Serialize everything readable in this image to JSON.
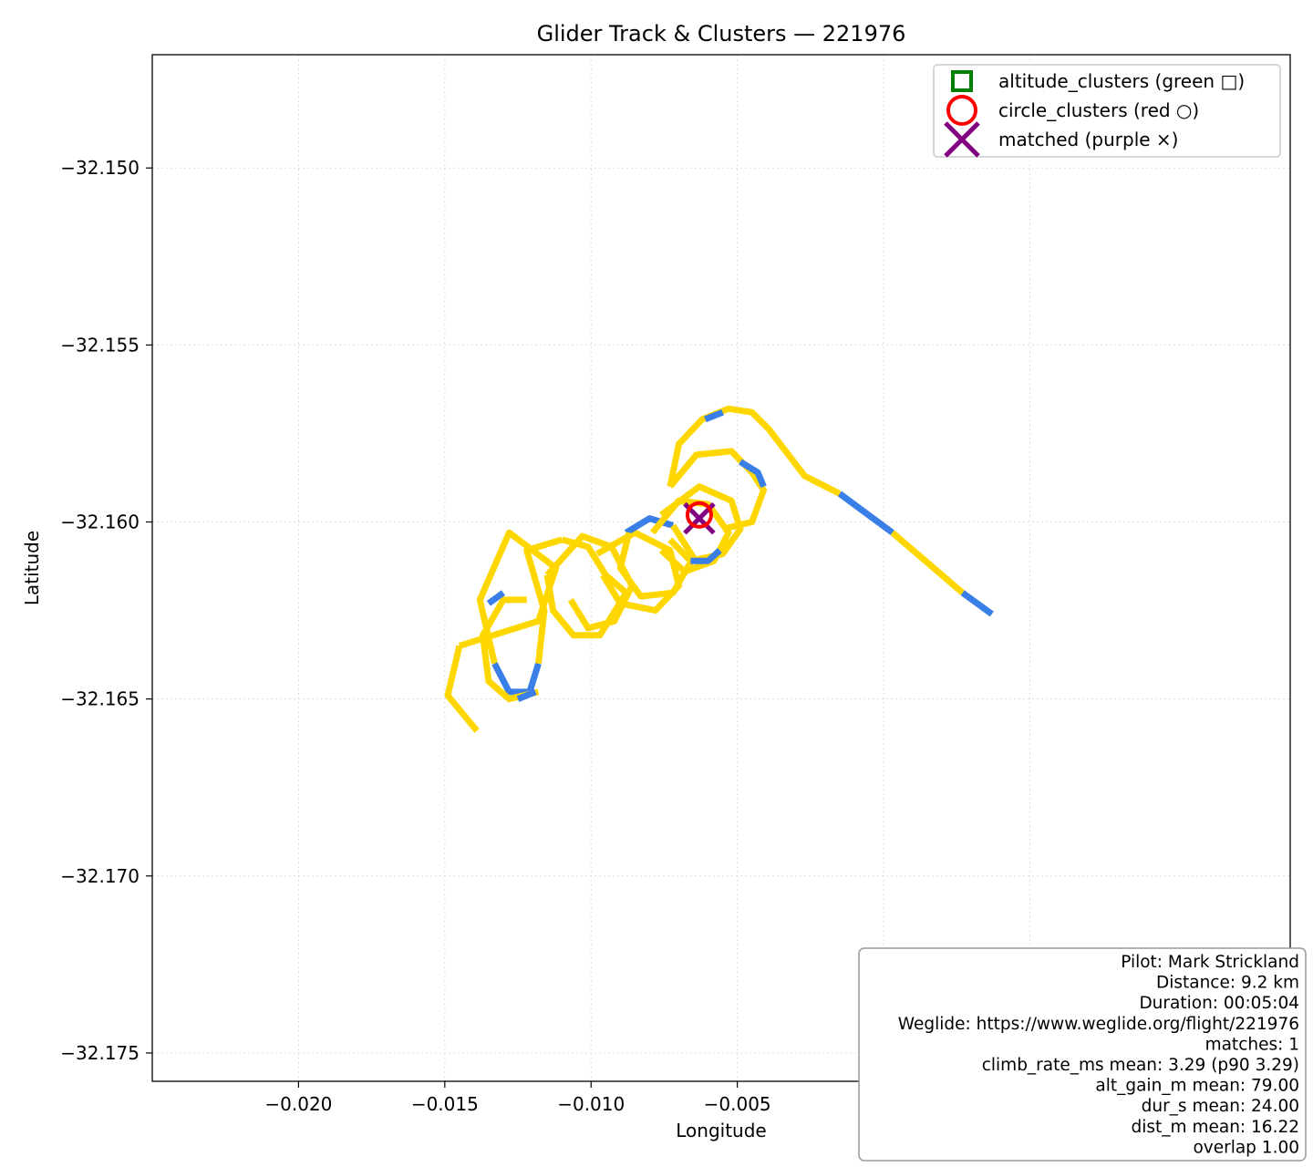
{
  "chart_data": {
    "type": "line",
    "title": "Glider Track & Clusters — 221976",
    "xlabel": "Longitude",
    "ylabel": "Latitude",
    "xlim": [
      -0.025,
      0.0139
    ],
    "ylim": [
      -32.1758,
      -32.1468
    ],
    "x_ticks": [
      -0.02,
      -0.015,
      -0.01,
      -0.005,
      0.0,
      0.005
    ],
    "x_tick_labels": [
      "−0.020",
      "−0.015",
      "−0.010",
      "−0.005",
      "0.000",
      "0.005"
    ],
    "y_ticks": [
      -32.15,
      -32.155,
      -32.16,
      -32.165,
      -32.17,
      -32.175
    ],
    "y_tick_labels": [
      "−32.150",
      "−32.155",
      "−32.160",
      "−32.165",
      "−32.170",
      "−32.175"
    ],
    "grid": true,
    "legend_position": "top-right",
    "colors": {
      "track_climb": "#FFD700",
      "track_sink": "#3A7FE8",
      "altitude_clusters": "#008000",
      "circle_clusters": "#FF0000",
      "matched": "#800080"
    },
    "track_segments": [
      {
        "color": "track_climb",
        "points": [
          [
            -0.0139,
            -32.1659
          ],
          [
            -0.0149,
            -32.1649
          ],
          [
            -0.0145,
            -32.1635
          ]
        ]
      },
      {
        "color": "track_climb",
        "points": [
          [
            -0.0145,
            -32.1635
          ],
          [
            -0.0118,
            -32.1628
          ],
          [
            -0.0112,
            -32.1613
          ],
          [
            -0.0128,
            -32.1603
          ],
          [
            -0.0138,
            -32.1622
          ],
          [
            -0.0133,
            -32.164
          ]
        ]
      },
      {
        "color": "track_sink",
        "points": [
          [
            -0.0133,
            -32.164
          ],
          [
            -0.0128,
            -32.1648
          ],
          [
            -0.0121,
            -32.1648
          ],
          [
            -0.0118,
            -32.164
          ]
        ]
      },
      {
        "color": "track_climb",
        "points": [
          [
            -0.0118,
            -32.164
          ],
          [
            -0.0116,
            -32.1625
          ],
          [
            -0.0122,
            -32.1608
          ],
          [
            -0.011,
            -32.1605
          ]
        ]
      },
      {
        "color": "track_climb",
        "points": [
          [
            -0.011,
            -32.1605
          ],
          [
            -0.0101,
            -32.1607
          ],
          [
            -0.0095,
            -32.1615
          ],
          [
            -0.0088,
            -32.162
          ],
          [
            -0.0097,
            -32.1632
          ],
          [
            -0.0106,
            -32.1632
          ],
          [
            -0.0113,
            -32.1625
          ],
          [
            -0.0115,
            -32.1615
          ]
        ]
      },
      {
        "color": "track_climb",
        "points": [
          [
            -0.0115,
            -32.1615
          ],
          [
            -0.0103,
            -32.1604
          ],
          [
            -0.0093,
            -32.1607
          ],
          [
            -0.0086,
            -32.1618
          ],
          [
            -0.0092,
            -32.1628
          ],
          [
            -0.0101,
            -32.163
          ],
          [
            -0.0107,
            -32.1622
          ]
        ]
      },
      {
        "color": "track_climb",
        "points": [
          [
            -0.0098,
            -32.1609
          ],
          [
            -0.0085,
            -32.1603
          ],
          [
            -0.0073,
            -32.1608
          ],
          [
            -0.007,
            -32.1618
          ],
          [
            -0.0078,
            -32.1625
          ],
          [
            -0.009,
            -32.1623
          ],
          [
            -0.0096,
            -32.1615
          ]
        ]
      },
      {
        "color": "track_sink",
        "points": [
          [
            -0.0088,
            -32.1603
          ],
          [
            -0.008,
            -32.1599
          ],
          [
            -0.0072,
            -32.1601
          ]
        ]
      },
      {
        "color": "track_climb",
        "points": [
          [
            -0.0072,
            -32.1601
          ],
          [
            -0.0065,
            -32.161
          ],
          [
            -0.0072,
            -32.162
          ],
          [
            -0.0083,
            -32.1621
          ],
          [
            -0.009,
            -32.1613
          ],
          [
            -0.0087,
            -32.1603
          ]
        ]
      },
      {
        "color": "track_climb",
        "points": [
          [
            -0.0079,
            -32.1603
          ],
          [
            -0.007,
            -32.1594
          ],
          [
            -0.006,
            -32.1595
          ],
          [
            -0.0053,
            -32.1603
          ],
          [
            -0.0058,
            -32.1611
          ],
          [
            -0.0068,
            -32.1614
          ],
          [
            -0.0076,
            -32.1608
          ]
        ]
      },
      {
        "color": "track_climb",
        "points": [
          [
            -0.0076,
            -32.1598
          ],
          [
            -0.0063,
            -32.159
          ],
          [
            -0.0052,
            -32.1594
          ],
          [
            -0.0049,
            -32.1602
          ],
          [
            -0.0055,
            -32.1609
          ],
          [
            -0.0066,
            -32.1611
          ],
          [
            -0.0073,
            -32.1605
          ]
        ]
      },
      {
        "color": "track_sink",
        "points": [
          [
            -0.0066,
            -32.1611
          ],
          [
            -0.006,
            -32.1611
          ],
          [
            -0.0056,
            -32.1608
          ]
        ]
      },
      {
        "color": "track_climb",
        "points": [
          [
            -0.0073,
            -32.159
          ],
          [
            -0.0064,
            -32.1581
          ],
          [
            -0.0052,
            -32.158
          ],
          [
            -0.0045,
            -32.1586
          ],
          [
            -0.0041,
            -32.1591
          ],
          [
            -0.0045,
            -32.16
          ],
          [
            -0.0055,
            -32.1602
          ]
        ]
      },
      {
        "color": "track_sink",
        "points": [
          [
            -0.0049,
            -32.1583
          ],
          [
            -0.0043,
            -32.1586
          ],
          [
            -0.0041,
            -32.159
          ]
        ]
      },
      {
        "color": "track_climb",
        "points": [
          [
            -0.0073,
            -32.159
          ],
          [
            -0.007,
            -32.1578
          ],
          [
            -0.0062,
            -32.1571
          ],
          [
            -0.0053,
            -32.1568
          ],
          [
            -0.0045,
            -32.1569
          ],
          [
            -0.0039,
            -32.1574
          ],
          [
            -0.0027,
            -32.1587
          ],
          [
            -0.0015,
            -32.1592
          ]
        ]
      },
      {
        "color": "track_sink",
        "points": [
          [
            -0.0061,
            -32.1571
          ],
          [
            -0.0055,
            -32.1569
          ]
        ]
      },
      {
        "color": "track_sink",
        "points": [
          [
            -0.0015,
            -32.1592
          ],
          [
            0.0003,
            -32.1603
          ]
        ]
      },
      {
        "color": "track_climb",
        "points": [
          [
            0.0003,
            -32.1603
          ],
          [
            0.0027,
            -32.162
          ]
        ]
      },
      {
        "color": "track_sink",
        "points": [
          [
            0.0027,
            -32.162
          ],
          [
            0.0037,
            -32.1626
          ]
        ]
      },
      {
        "color": "track_climb",
        "points": [
          [
            -0.0118,
            -32.1648
          ],
          [
            -0.0128,
            -32.165
          ],
          [
            -0.0135,
            -32.1645
          ],
          [
            -0.0137,
            -32.1632
          ],
          [
            -0.013,
            -32.1622
          ],
          [
            -0.0122,
            -32.1622
          ]
        ]
      },
      {
        "color": "track_sink",
        "points": [
          [
            -0.0125,
            -32.165
          ],
          [
            -0.0119,
            -32.1648
          ]
        ]
      },
      {
        "color": "track_sink",
        "points": [
          [
            -0.0135,
            -32.1623
          ],
          [
            -0.013,
            -32.162
          ]
        ]
      }
    ],
    "markers": {
      "circle_clusters": [
        [
          -0.0063,
          -32.1598
        ]
      ],
      "matched": [
        [
          -0.0063,
          -32.1599
        ]
      ],
      "altitude_clusters": []
    },
    "legend": [
      {
        "key": "altitude_clusters",
        "label": "altitude_clusters (green □)",
        "marker": "square"
      },
      {
        "key": "circle_clusters",
        "label": "circle_clusters (red ○)",
        "marker": "circle"
      },
      {
        "key": "matched",
        "label": "matched (purple ×)",
        "marker": "x"
      }
    ],
    "info_box": {
      "position": "bottom-right",
      "lines": [
        "Pilot: Mark Strickland",
        "Distance: 9.2 km",
        "Duration: 00:05:04",
        "Weglide: https://www.weglide.org/flight/221976",
        "matches: 1",
        "climb_rate_ms mean: 3.29 (p90 3.29)",
        "alt_gain_m mean: 79.00",
        "dur_s mean: 24.00",
        "dist_m mean: 16.22",
        "overlap 1.00"
      ]
    }
  }
}
